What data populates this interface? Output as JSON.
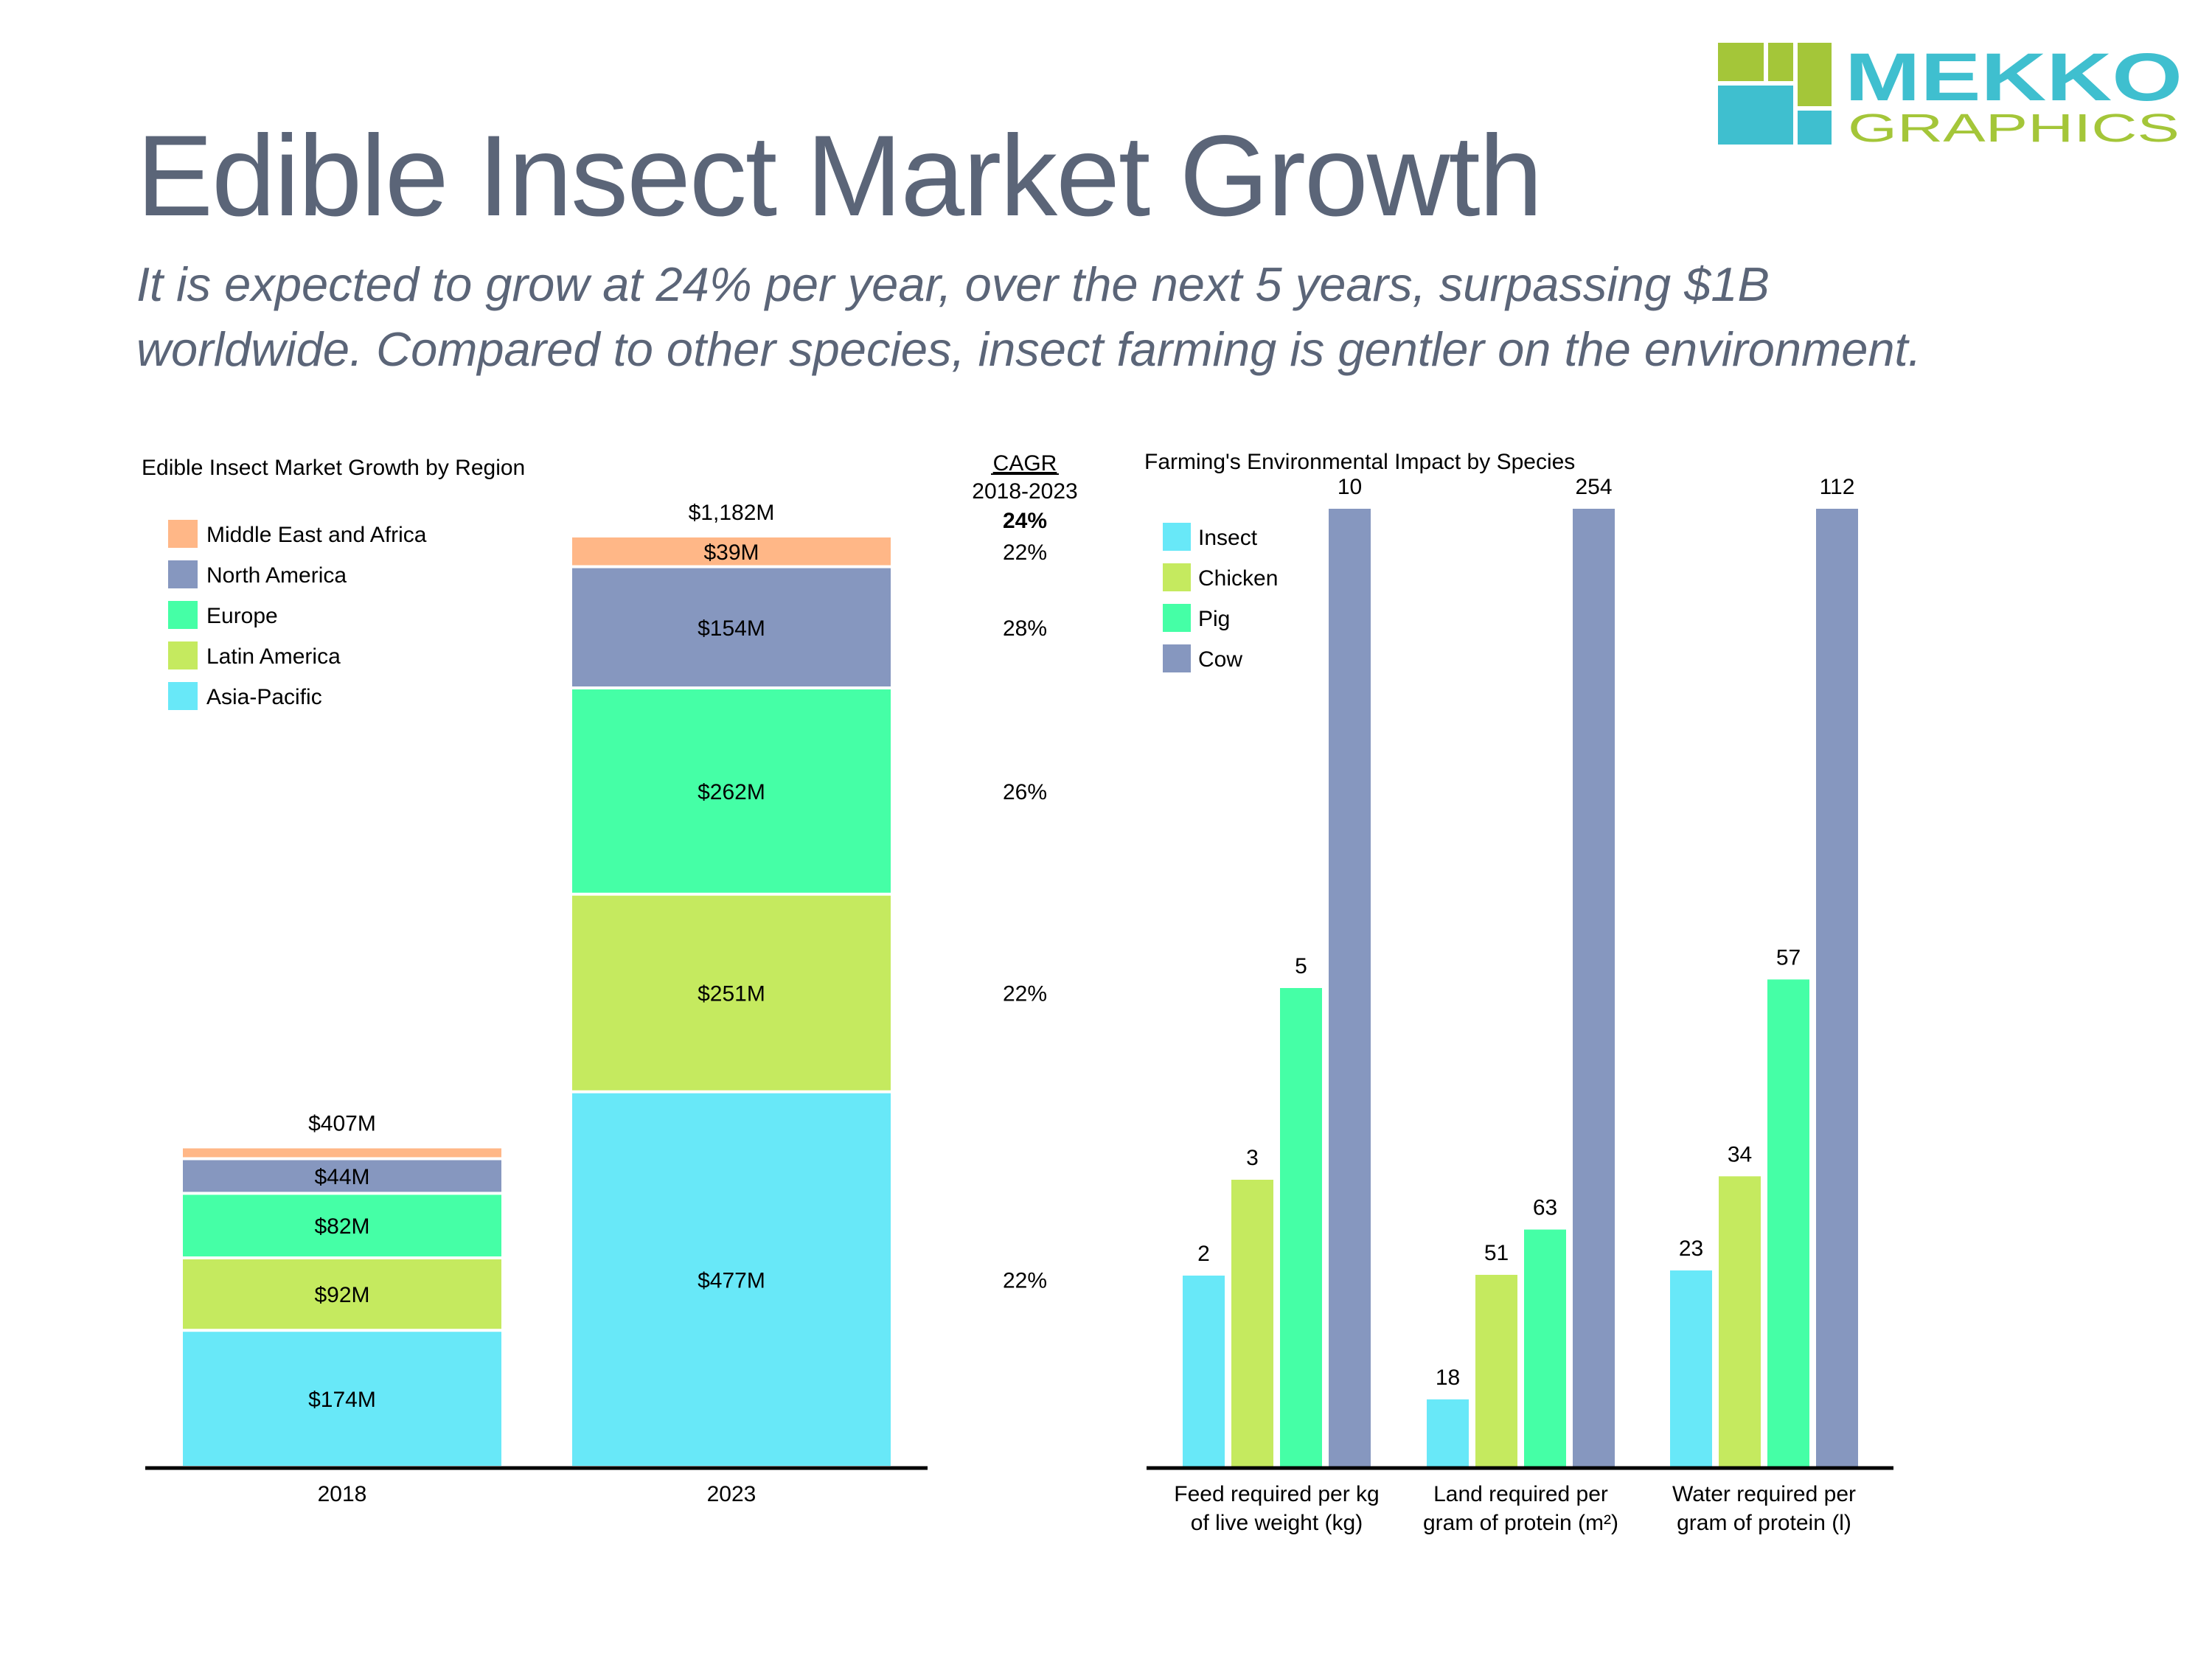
{
  "title": "Edible Insect Market Growth",
  "subtitle": [
    "It is expected to grow at 24% per year, over the next 5 years, surpassing $1B",
    "worldwide. Compared to other species, insect farming is gentler on the environment."
  ],
  "logo": {
    "word1": "MEKKO",
    "word2": "GRAPHICS",
    "colors": {
      "green": "#a4c639",
      "teal": "#3fbfcf"
    }
  },
  "chart_data": [
    {
      "type": "bar",
      "subtype": "stacked",
      "title": "Edible Insect Market Growth by Region",
      "categories": [
        "2018",
        "2023"
      ],
      "totals": [
        407,
        1182
      ],
      "total_labels": [
        "$407M",
        "$1,182M"
      ],
      "series": [
        {
          "name": "Asia-Pacific",
          "color": "#68e8f8",
          "values": [
            174,
            477
          ],
          "labels": [
            "$174M",
            "$477M"
          ],
          "cagr": "22%"
        },
        {
          "name": "Latin America",
          "color": "#c5ea5f",
          "values": [
            92,
            251
          ],
          "labels": [
            "$92M",
            "$251M"
          ],
          "cagr": "22%"
        },
        {
          "name": "Europe",
          "color": "#45ffa6",
          "values": [
            82,
            262
          ],
          "labels": [
            "$82M",
            "$262M"
          ],
          "cagr": "26%"
        },
        {
          "name": "North America",
          "color": "#8697bf",
          "values": [
            44,
            154
          ],
          "labels": [
            "$44M",
            "$154M"
          ],
          "cagr": "28%"
        },
        {
          "name": "Middle East and Africa",
          "color": "#ffb787",
          "values": [
            15,
            39
          ],
          "labels": [
            "",
            "$39M"
          ],
          "cagr": "22%"
        }
      ],
      "cagr_header": [
        "CAGR",
        "2018-2023"
      ],
      "cagr_total": "24%",
      "legend_position": "top-left",
      "legend_order": [
        "Middle East and Africa",
        "North America",
        "Europe",
        "Latin America",
        "Asia-Pacific"
      ],
      "xlabel": "",
      "ylabel": "",
      "ylim": [
        0,
        1182
      ]
    },
    {
      "type": "bar",
      "subtype": "grouped",
      "title": "Farming's Environmental Impact by Species",
      "categories": [
        [
          "Feed required per kg",
          "of live weight (kg)"
        ],
        [
          "Land required per",
          "gram of protein (m²)"
        ],
        [
          "Water required per",
          "gram of protein (l)"
        ]
      ],
      "series": [
        {
          "name": "Insect",
          "color": "#68e8f8",
          "values": [
            2,
            18,
            23
          ]
        },
        {
          "name": "Chicken",
          "color": "#c5ea5f",
          "values": [
            3,
            51,
            34
          ]
        },
        {
          "name": "Pig",
          "color": "#45ffa6",
          "values": [
            5,
            63,
            57
          ]
        },
        {
          "name": "Cow",
          "color": "#8697bf",
          "values": [
            10,
            254,
            112
          ]
        }
      ],
      "scale": "each category group scaled so its tallest bar is full height",
      "legend_position": "top-left",
      "xlabel": "",
      "ylabel": ""
    }
  ]
}
